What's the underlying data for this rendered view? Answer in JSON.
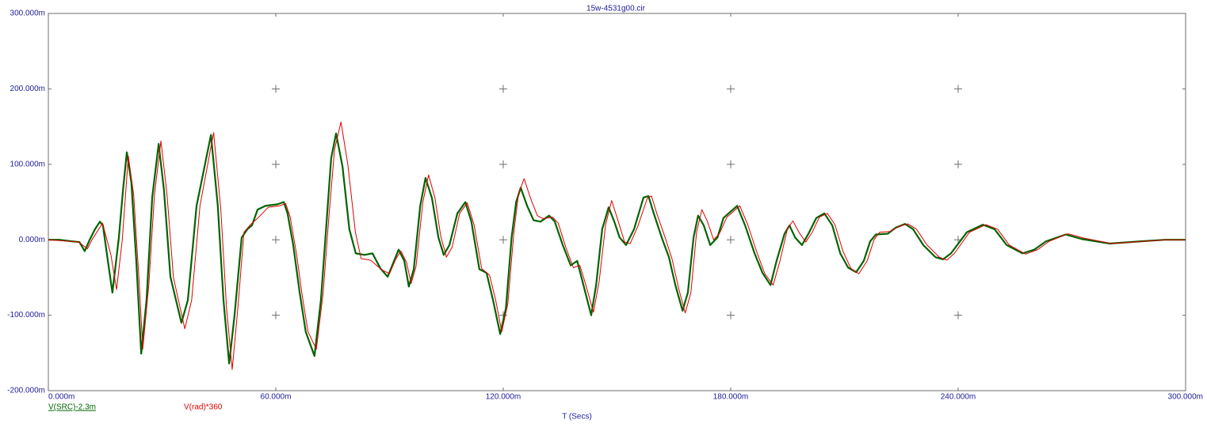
{
  "chart_data": {
    "type": "line",
    "title": "15w-4531g00.cir",
    "x_label": "T (Secs)",
    "xlim": [
      0,
      0.3
    ],
    "ylim": [
      -0.2,
      0.3
    ],
    "xticks": [
      {
        "value": 0,
        "label": "0.000m"
      },
      {
        "value": 0.06,
        "label": "60.000m"
      },
      {
        "value": 0.12,
        "label": "120.000m"
      },
      {
        "value": 0.18,
        "label": "180.000m"
      },
      {
        "value": 0.24,
        "label": "240.000m"
      },
      {
        "value": 0.3,
        "label": "300.000m"
      }
    ],
    "yticks": [
      {
        "value": -0.2,
        "label": "-200.000m"
      },
      {
        "value": -0.1,
        "label": "-100.000m"
      },
      {
        "value": 0,
        "label": "0.000m"
      },
      {
        "value": 0.1,
        "label": "100.000m"
      },
      {
        "value": 0.2,
        "label": "200.000m"
      },
      {
        "value": 0.3,
        "label": "300.000m"
      }
    ],
    "grid": "cross",
    "series": [
      {
        "name": "V(SRC)-2.3m",
        "color": "#006400",
        "x": [
          0,
          0.0029,
          0.0061,
          0.0082,
          0.0096,
          0.0109,
          0.0123,
          0.0136,
          0.0144,
          0.0157,
          0.0169,
          0.0186,
          0.0197,
          0.0207,
          0.0219,
          0.0232,
          0.0245,
          0.0259,
          0.0274,
          0.0291,
          0.0305,
          0.0322,
          0.0351,
          0.0368,
          0.0391,
          0.0429,
          0.0447,
          0.0462,
          0.0477,
          0.0491,
          0.051,
          0.0525,
          0.0537,
          0.0552,
          0.0573,
          0.0604,
          0.0621,
          0.0631,
          0.0646,
          0.0663,
          0.0679,
          0.0702,
          0.0719,
          0.0734,
          0.0746,
          0.0759,
          0.0776,
          0.0794,
          0.0811,
          0.0834,
          0.0855,
          0.0876,
          0.0895,
          0.0912,
          0.0924,
          0.0939,
          0.0951,
          0.0964,
          0.0981,
          0.0995,
          0.1012,
          0.1029,
          0.1043,
          0.1058,
          0.1079,
          0.11,
          0.1116,
          0.1137,
          0.1156,
          0.1173,
          0.1192,
          0.1207,
          0.1222,
          0.1234,
          0.1246,
          0.1263,
          0.128,
          0.1298,
          0.1321,
          0.1336,
          0.1357,
          0.1378,
          0.1395,
          0.1409,
          0.1432,
          0.1445,
          0.1461,
          0.1478,
          0.1493,
          0.1507,
          0.1524,
          0.1545,
          0.157,
          0.1583,
          0.1597,
          0.1618,
          0.1637,
          0.1654,
          0.1673,
          0.1687,
          0.1702,
          0.1714,
          0.1729,
          0.1746,
          0.1765,
          0.1781,
          0.1817,
          0.1838,
          0.1863,
          0.1884,
          0.1905,
          0.1921,
          0.1942,
          0.1955,
          0.197,
          0.1988,
          0.2005,
          0.2026,
          0.2047,
          0.2068,
          0.2089,
          0.211,
          0.2131,
          0.2151,
          0.2168,
          0.2183,
          0.2214,
          0.2235,
          0.226,
          0.2281,
          0.2308,
          0.234,
          0.236,
          0.2381,
          0.2423,
          0.2465,
          0.2496,
          0.2528,
          0.257,
          0.2601,
          0.2632,
          0.2684,
          0.2726,
          0.2799,
          0.2883,
          0.2946,
          0.3
        ],
        "values": [
          0,
          0,
          -0.002,
          -0.003,
          -0.015,
          0,
          0.014,
          0.024,
          0.019,
          -0.028,
          -0.07,
          0.003,
          0.066,
          0.116,
          0.076,
          -0.028,
          -0.151,
          -0.08,
          0.056,
          0.127,
          0.066,
          -0.049,
          -0.11,
          -0.08,
          0.045,
          0.139,
          0.045,
          -0.08,
          -0.164,
          -0.101,
          0.003,
          0.014,
          0.019,
          0.04,
          0.045,
          0.047,
          0.05,
          0.035,
          -0.007,
          -0.07,
          -0.122,
          -0.154,
          -0.08,
          0.024,
          0.108,
          0.141,
          0.097,
          0.014,
          -0.018,
          -0.02,
          -0.018,
          -0.038,
          -0.049,
          -0.028,
          -0.013,
          -0.028,
          -0.062,
          -0.039,
          0.045,
          0.082,
          0.055,
          0.003,
          -0.02,
          -0.007,
          0.035,
          0.05,
          0.024,
          -0.039,
          -0.044,
          -0.08,
          -0.125,
          -0.091,
          0.003,
          0.05,
          0.069,
          0.045,
          0.026,
          0.024,
          0.032,
          0.024,
          -0.007,
          -0.034,
          -0.028,
          -0.055,
          -0.1,
          -0.06,
          0.014,
          0.043,
          0.024,
          0.003,
          -0.007,
          0.014,
          0.056,
          0.058,
          0.035,
          0.003,
          -0.023,
          -0.06,
          -0.094,
          -0.07,
          0.003,
          0.032,
          0.019,
          -0.007,
          0.003,
          0.029,
          0.045,
          0.019,
          -0.018,
          -0.044,
          -0.06,
          -0.028,
          0.008,
          0.019,
          0.003,
          -0.007,
          0.008,
          0.029,
          0.035,
          0.019,
          -0.018,
          -0.037,
          -0.043,
          -0.028,
          -0.002,
          0.007,
          0.008,
          0.016,
          0.021,
          0.014,
          -0.007,
          -0.023,
          -0.026,
          -0.018,
          0.01,
          0.02,
          0.014,
          -0.007,
          -0.018,
          -0.013,
          -0.002,
          0.007,
          0.001,
          -0.005,
          -0.002,
          0,
          0
        ]
      },
      {
        "name": "V(rad)*360",
        "color": "#e00000",
        "x": [
          0,
          0.008,
          0.0103,
          0.0115,
          0.0143,
          0.0165,
          0.018,
          0.0195,
          0.0211,
          0.0225,
          0.024,
          0.0249,
          0.0265,
          0.028,
          0.0297,
          0.0313,
          0.033,
          0.036,
          0.0378,
          0.04,
          0.0436,
          0.0455,
          0.047,
          0.0485,
          0.05,
          0.0516,
          0.0533,
          0.0555,
          0.058,
          0.061,
          0.0626,
          0.0638,
          0.0655,
          0.067,
          0.0685,
          0.0707,
          0.0725,
          0.074,
          0.0755,
          0.0772,
          0.079,
          0.081,
          0.0825,
          0.085,
          0.088,
          0.09,
          0.0917,
          0.093,
          0.0945,
          0.0957,
          0.097,
          0.0988,
          0.1003,
          0.102,
          0.1035,
          0.105,
          0.1065,
          0.1085,
          0.1105,
          0.1123,
          0.1143,
          0.1164,
          0.118,
          0.1196,
          0.1212,
          0.1228,
          0.124,
          0.1255,
          0.1272,
          0.129,
          0.1305,
          0.133,
          0.1345,
          0.1365,
          0.1385,
          0.1402,
          0.1415,
          0.1438,
          0.1453,
          0.147,
          0.1486,
          0.1503,
          0.152,
          0.1535,
          0.1555,
          0.158,
          0.1591,
          0.1605,
          0.1627,
          0.1645,
          0.1663,
          0.168,
          0.1695,
          0.171,
          0.1724,
          0.1738,
          0.1755,
          0.177,
          0.179,
          0.1824,
          0.1845,
          0.187,
          0.189,
          0.1912,
          0.193,
          0.195,
          0.1964,
          0.198,
          0.1998,
          0.2015,
          0.2034,
          0.2055,
          0.2075,
          0.2096,
          0.2117,
          0.2138,
          0.216,
          0.2178,
          0.2193,
          0.222,
          0.2245,
          0.2268,
          0.229,
          0.2318,
          0.235,
          0.237,
          0.239,
          0.243,
          0.2473,
          0.2504,
          0.2535,
          0.2578,
          0.261,
          0.264,
          0.269,
          0.2733,
          0.2805,
          0.289,
          0.295,
          0.3
        ],
        "values": [
          0,
          -0.003,
          -0.012,
          0,
          0.022,
          -0.02,
          -0.066,
          0,
          0.111,
          0.06,
          -0.06,
          -0.145,
          -0.06,
          0.06,
          0.131,
          0.06,
          -0.05,
          -0.118,
          -0.08,
          0.045,
          0.142,
          0.04,
          -0.09,
          -0.172,
          -0.09,
          0.01,
          0.02,
          0.03,
          0.043,
          0.045,
          0.048,
          0.03,
          -0.02,
          -0.075,
          -0.122,
          -0.145,
          -0.07,
          0.03,
          0.12,
          0.156,
          0.1,
          0.01,
          -0.025,
          -0.027,
          -0.04,
          -0.045,
          -0.025,
          -0.015,
          -0.03,
          -0.058,
          -0.035,
          0.05,
          0.086,
          0.055,
          0.005,
          -0.023,
          -0.01,
          0.035,
          0.049,
          0.02,
          -0.038,
          -0.047,
          -0.08,
          -0.122,
          -0.085,
          0.01,
          0.06,
          0.081,
          0.055,
          0.032,
          0.028,
          0.03,
          0.022,
          -0.01,
          -0.037,
          -0.034,
          -0.055,
          -0.096,
          -0.055,
          0.02,
          0.052,
          0.025,
          -0.003,
          -0.005,
          0.018,
          0.055,
          0.058,
          0.035,
          0.003,
          -0.025,
          -0.065,
          -0.097,
          -0.07,
          0.01,
          0.04,
          0.025,
          0,
          0.008,
          0.03,
          0.045,
          0.02,
          -0.018,
          -0.045,
          -0.06,
          -0.028,
          0.015,
          0.025,
          0.01,
          -0.003,
          0.01,
          0.03,
          0.035,
          0.02,
          -0.015,
          -0.038,
          -0.045,
          -0.028,
          0,
          0.01,
          0.011,
          0.018,
          0.021,
          0.014,
          -0.007,
          -0.023,
          -0.027,
          -0.018,
          0.01,
          0.02,
          0.014,
          -0.007,
          -0.019,
          -0.013,
          -0.002,
          0.008,
          0.002,
          -0.005,
          -0.002,
          0,
          0
        ]
      }
    ]
  }
}
